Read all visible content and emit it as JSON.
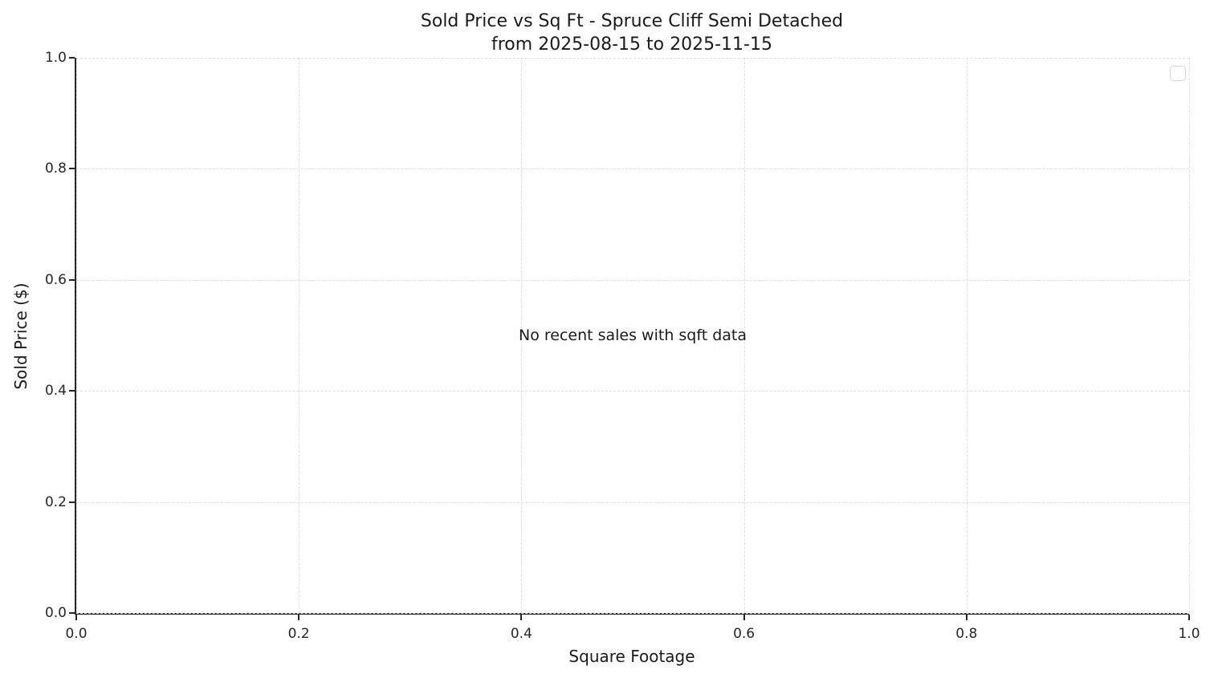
{
  "colors": {
    "background": "#ffffff",
    "spine": "#262626",
    "grid": "#dcdcdc",
    "text": "#1a1a1a"
  },
  "chart_data": {
    "type": "scatter",
    "title": "Sold Price vs Sq Ft - Spruce Cliff Semi Detached",
    "subtitle": "from 2025-08-15 to 2025-11-15",
    "xlabel": "Square Footage",
    "ylabel": "Sold Price ($)",
    "xlim": [
      0.0,
      1.0
    ],
    "ylim": [
      0.0,
      1.0
    ],
    "xticks": [
      "0.0",
      "0.2",
      "0.4",
      "0.6",
      "0.8",
      "1.0"
    ],
    "yticks": [
      "0.0",
      "0.2",
      "0.4",
      "0.6",
      "0.8",
      "1.0"
    ],
    "grid": true,
    "grid_style": "dashed",
    "points": [],
    "series": [],
    "annotation": "No recent sales with sqft data",
    "legend": {
      "visible": true,
      "position": "upper right",
      "entries": []
    }
  }
}
